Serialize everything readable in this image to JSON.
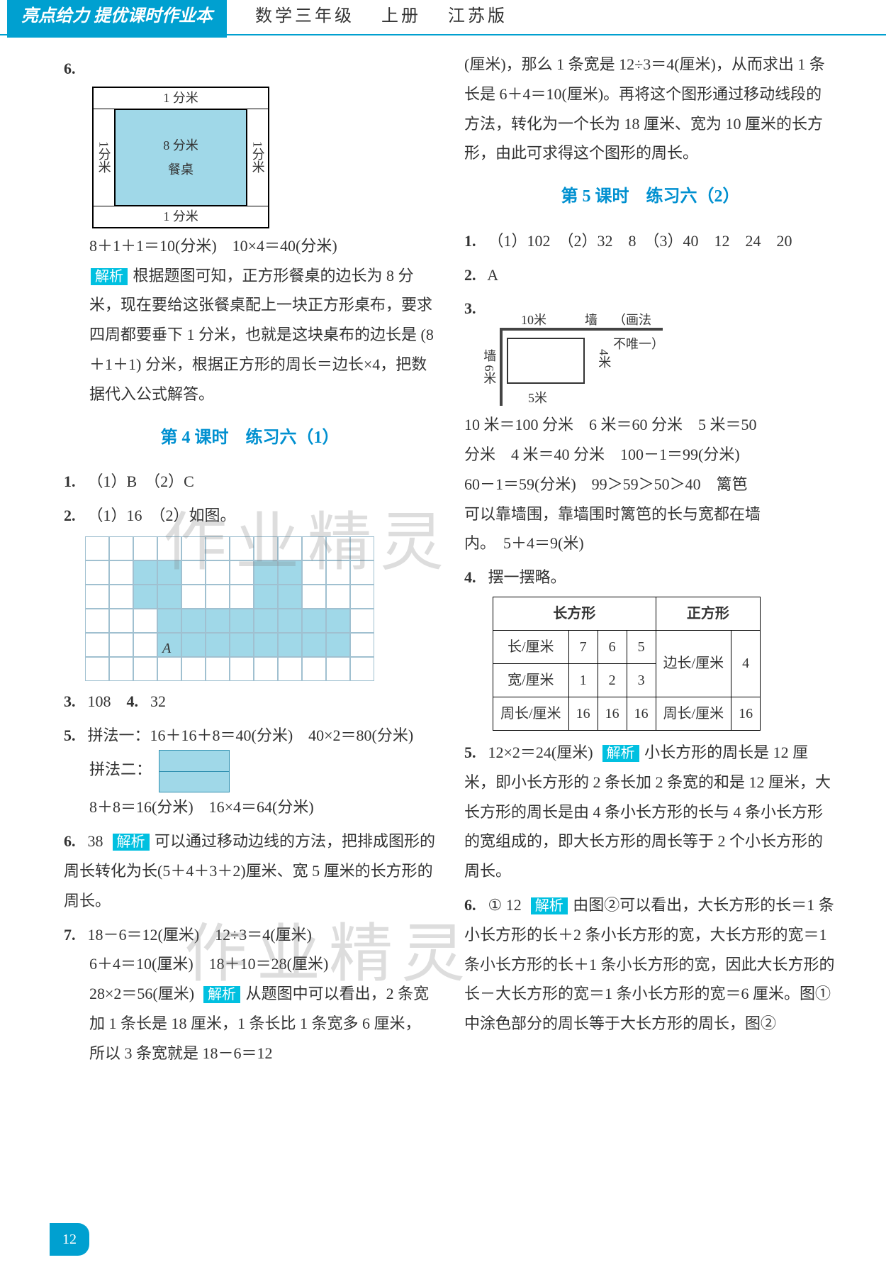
{
  "header": {
    "badge": "亮点给力 提优课时作业本",
    "subject": "数学三年级",
    "volume": "上册",
    "edition": "江苏版"
  },
  "watermark": "作业精灵",
  "page_number": "12",
  "left": {
    "q6": {
      "num": "6.",
      "diagram": {
        "top": "1 分米",
        "mid_top": "8 分米",
        "center": "餐桌",
        "left": "1分米",
        "right": "1分米",
        "bottom": "1 分米"
      },
      "calc": "8＋1＋1＝10(分米)　10×4＝40(分米)",
      "analysis_label": "解析",
      "analysis": "根据题图可知，正方形餐桌的边长为 8 分米，现在要给这张餐桌配上一块正方形桌布，要求四周都要垂下 1 分米，也就是这块桌布的边长是 (8＋1＋1) 分米，根据正方形的周长＝边长×4，把数据代入公式解答。"
    },
    "section4_title": "第 4 课时　练习六（1）",
    "s4": {
      "q1": {
        "num": "1.",
        "text": "（1）B　（2）C"
      },
      "q2": {
        "num": "2.",
        "text": "（1）16　（2）如图。"
      },
      "grid": {
        "rows": 6,
        "cols": 12,
        "filled_color": "#a0d8e8",
        "grid_color": "#a0c0d0",
        "filled": [
          [
            1,
            2
          ],
          [
            1,
            3
          ],
          [
            1,
            7
          ],
          [
            1,
            8
          ],
          [
            2,
            2
          ],
          [
            2,
            3
          ],
          [
            2,
            7
          ],
          [
            2,
            8
          ],
          [
            3,
            3
          ],
          [
            3,
            4
          ],
          [
            3,
            5
          ],
          [
            3,
            6
          ],
          [
            3,
            7
          ],
          [
            3,
            8
          ],
          [
            3,
            9
          ],
          [
            3,
            10
          ],
          [
            4,
            3
          ],
          [
            4,
            4
          ],
          [
            4,
            5
          ],
          [
            4,
            6
          ],
          [
            4,
            7
          ],
          [
            4,
            8
          ],
          [
            4,
            9
          ],
          [
            4,
            10
          ]
        ],
        "label_A_cell": [
          4,
          3
        ]
      },
      "q3": {
        "num": "3.",
        "text": "108"
      },
      "q4": {
        "num": "4.",
        "text": "32"
      },
      "q5": {
        "num": "5.",
        "line1": "拼法一：16＋16＋8＝40(分米)　40×2＝80(分米)",
        "line2_prefix": "拼法二：",
        "line3": "8＋8＝16(分米)　16×4＝64(分米)"
      },
      "q6": {
        "num": "6.",
        "text": "38",
        "analysis_label": "解析",
        "analysis": "可以通过移动边线的方法，把排成图形的周长转化为长(5＋4＋3＋2)厘米、宽 5 厘米的长方形的周长。"
      },
      "q7": {
        "num": "7.",
        "l1": "18－6＝12(厘米)　12÷3＝4(厘米)",
        "l2": "6＋4＝10(厘米)　18＋10＝28(厘米)",
        "l3": "28×2＝56(厘米)",
        "analysis_label": "解析",
        "analysis": "从题图中可以看出，2 条宽加 1 条长是 18 厘米，1 条长比 1 条宽多 6 厘米，所以 3 条宽就是 18－6＝12"
      }
    }
  },
  "right": {
    "continuation": "(厘米)，那么 1 条宽是 12÷3＝4(厘米)，从而求出 1 条长是 6＋4＝10(厘米)。再将这个图形通过移动线段的方法，转化为一个长为 18 厘米、宽为 10 厘米的长方形，由此可求得这个图形的周长。",
    "section5_title": "第 5 课时　练习六（2）",
    "s5": {
      "q1": {
        "num": "1.",
        "text": "（1）102　（2）32　8　（3）40　12　24　20"
      },
      "q2": {
        "num": "2.",
        "text": "A"
      },
      "q3": {
        "num": "3.",
        "top_label": "10米",
        "wall_label": "墙",
        "note": "（画法不唯一）",
        "left_label": "墙 6米",
        "right_label": "4米",
        "bottom_label": "5米",
        "l1": "10 米＝100 分米　6 米＝60 分米　5 米＝50",
        "l2": "分米　4 米＝40 分米　100－1＝99(分米)",
        "l3": "60－1＝59(分米)　99＞59＞50＞40　篱笆",
        "l4": "可以靠墙围，靠墙围时篱笆的长与宽都在墙",
        "l5": "内。　5＋4＝9(米)"
      },
      "q4": {
        "num": "4.",
        "prefix": "摆一摆略。",
        "table": {
          "head_rect": "长方形",
          "head_sq": "正方形",
          "row_labels": [
            "长/厘米",
            "宽/厘米",
            "周长/厘米"
          ],
          "rect_vals": [
            [
              "7",
              "6",
              "5"
            ],
            [
              "1",
              "2",
              "3"
            ],
            [
              "16",
              "16",
              "16"
            ]
          ],
          "sq_label": "边长/厘米",
          "sq_val": "4",
          "sq_perim_label": "周长/厘米",
          "sq_perim_val": "16"
        }
      },
      "q5": {
        "num": "5.",
        "lead": "12×2＝24(厘米)",
        "analysis_label": "解析",
        "analysis": "小长方形的周长是 12 厘米，即小长方形的 2 条长加 2 条宽的和是 12 厘米，大长方形的周长是由 4 条小长方形的长与 4 条小长方形的宽组成的，即大长方形的周长等于 2 个小长方形的周长。"
      },
      "q6": {
        "num": "6.",
        "lead": "① 12",
        "analysis_label": "解析",
        "analysis": "由图②可以看出，大长方形的长＝1 条小长方形的长＋2 条小长方形的宽，大长方形的宽＝1 条小长方形的长＋1 条小长方形的宽，因此大长方形的长－大长方形的宽＝1 条小长方形的宽＝6 厘米。图①中涂色部分的周长等于大长方形的周长，图②"
      }
    }
  }
}
